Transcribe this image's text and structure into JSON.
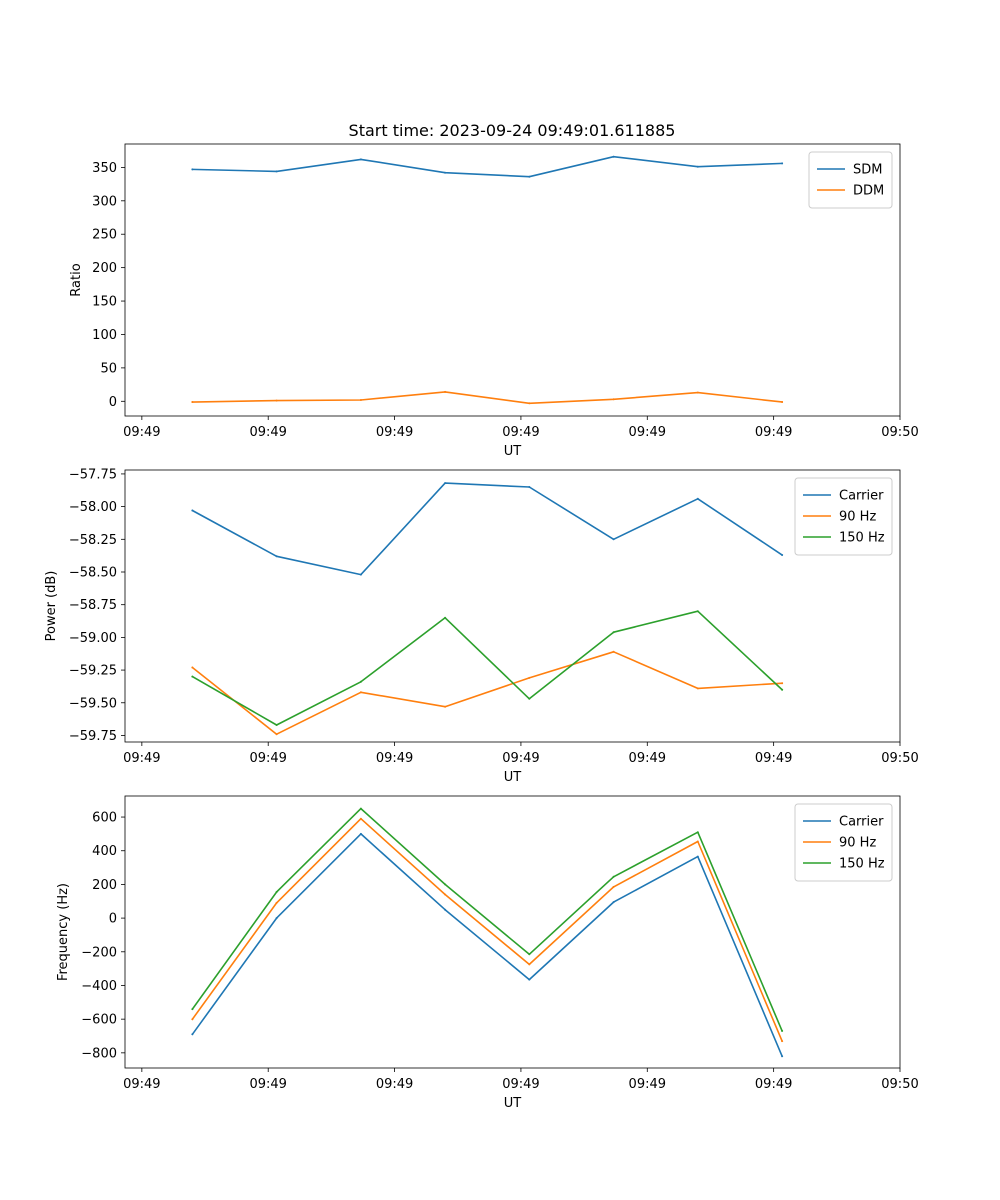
{
  "chart_data": [
    {
      "type": "line",
      "title": "Start time: 2023-09-24 09:49:01.611885",
      "xlabel": "UT",
      "ylabel": "Ratio",
      "x": [
        1,
        2,
        3,
        4,
        5,
        6,
        7,
        8
      ],
      "xlim": [
        0.2,
        9.4
      ],
      "xticks": [
        0.4,
        1.9,
        3.4,
        4.9,
        6.4,
        7.9,
        9.4
      ],
      "xtick_labels": [
        "09:49",
        "09:49",
        "09:49",
        "09:49",
        "09:49",
        "09:49",
        "09:50"
      ],
      "ylim": [
        -22,
        385
      ],
      "yticks": [
        0,
        50,
        100,
        150,
        200,
        250,
        300,
        350
      ],
      "ytick_labels": [
        "0",
        "50",
        "100",
        "150",
        "200",
        "250",
        "300",
        "350"
      ],
      "legend_position": "top-right",
      "series": [
        {
          "name": "SDM",
          "color": "#1f77b4",
          "values": [
            347,
            344,
            362,
            342,
            336,
            366,
            351,
            356
          ]
        },
        {
          "name": "DDM",
          "color": "#ff7f0e",
          "values": [
            -1,
            1,
            2,
            14,
            -3,
            3,
            13,
            -1
          ]
        }
      ]
    },
    {
      "type": "line",
      "xlabel": "UT",
      "ylabel": "Power (dB)",
      "x": [
        1,
        2,
        3,
        4,
        5,
        6,
        7,
        8
      ],
      "xlim": [
        0.2,
        9.4
      ],
      "xticks": [
        0.4,
        1.9,
        3.4,
        4.9,
        6.4,
        7.9,
        9.4
      ],
      "xtick_labels": [
        "09:49",
        "09:49",
        "09:49",
        "09:49",
        "09:49",
        "09:49",
        "09:50"
      ],
      "ylim": [
        -59.8,
        -57.72
      ],
      "yticks": [
        -59.75,
        -59.5,
        -59.25,
        -59.0,
        -58.75,
        -58.5,
        -58.25,
        -58.0,
        -57.75
      ],
      "ytick_labels": [
        "−59.75",
        "−59.50",
        "−59.25",
        "−59.00",
        "−58.75",
        "−58.50",
        "−58.25",
        "−58.00",
        "−57.75"
      ],
      "legend_position": "top-right",
      "series": [
        {
          "name": "Carrier",
          "color": "#1f77b4",
          "values": [
            -58.03,
            -58.38,
            -58.52,
            -57.82,
            -57.85,
            -58.25,
            -57.94,
            -58.37
          ]
        },
        {
          "name": "90 Hz",
          "color": "#ff7f0e",
          "values": [
            -59.23,
            -59.74,
            -59.42,
            -59.53,
            -59.31,
            -59.11,
            -59.39,
            -59.35
          ]
        },
        {
          "name": "150 Hz",
          "color": "#2ca02c",
          "values": [
            -59.3,
            -59.67,
            -59.34,
            -58.85,
            -59.47,
            -58.96,
            -58.8,
            -59.4
          ]
        }
      ]
    },
    {
      "type": "line",
      "xlabel": "UT",
      "ylabel": "Frequency (Hz)",
      "x": [
        1,
        2,
        3,
        4,
        5,
        6,
        7,
        8
      ],
      "xlim": [
        0.2,
        9.4
      ],
      "xticks": [
        0.4,
        1.9,
        3.4,
        4.9,
        6.4,
        7.9,
        9.4
      ],
      "xtick_labels": [
        "09:49",
        "09:49",
        "09:49",
        "09:49",
        "09:49",
        "09:49",
        "09:50"
      ],
      "ylim": [
        -890,
        725
      ],
      "yticks": [
        -800,
        -600,
        -400,
        -200,
        0,
        200,
        400,
        600
      ],
      "ytick_labels": [
        "−800",
        "−600",
        "−400",
        "−200",
        "0",
        "200",
        "400",
        "600"
      ],
      "legend_position": "top-right",
      "series": [
        {
          "name": "Carrier",
          "color": "#1f77b4",
          "values": [
            -690,
            0,
            500,
            50,
            -365,
            95,
            365,
            -820
          ]
        },
        {
          "name": "90 Hz",
          "color": "#ff7f0e",
          "values": [
            -600,
            90,
            590,
            140,
            -275,
            185,
            455,
            -730
          ]
        },
        {
          "name": "150 Hz",
          "color": "#2ca02c",
          "values": [
            -540,
            155,
            650,
            200,
            -215,
            245,
            510,
            -670
          ]
        }
      ]
    }
  ]
}
